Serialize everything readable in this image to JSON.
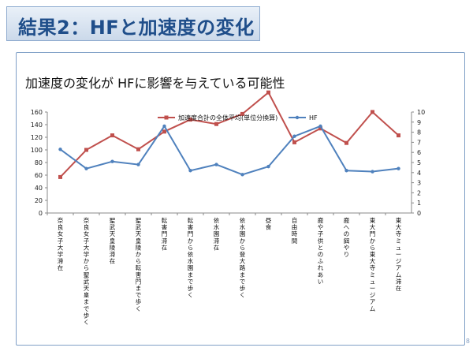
{
  "slide": {
    "title": "結果2：HFと加速度の変化",
    "subtitle": "加速度の変化が HFに影響を与えている可能性",
    "page_number": "8"
  },
  "chart_data": {
    "type": "line",
    "categories": [
      "奈良女子大学滞在",
      "奈良女子大学から聖武天皇まで歩く",
      "聖武天皇陵滞在",
      "聖武天皇陵から転害門まで歩く",
      "転害門滞在",
      "転害門から依水園まで歩く",
      "依水園滞在",
      "依水園から登大路まで歩く",
      "昼食",
      "自由時間",
      "鹿や子供とのふれあい",
      "鹿への餌やり",
      "東大門から東大寺ミュージアム",
      "東大寺ミュージアム滞在"
    ],
    "series": [
      {
        "name": "加速度合計の全体平均(単位分換算)",
        "axis": "left",
        "color": "#c0504d",
        "values": [
          57,
          100,
          123,
          101,
          129,
          148,
          141,
          157,
          191,
          112,
          134,
          111,
          160,
          123
        ]
      },
      {
        "name": "HF",
        "axis": "right",
        "color": "#4f81bd",
        "values": [
          6.3,
          4.4,
          5.1,
          4.8,
          8.6,
          4.2,
          4.8,
          3.8,
          4.6,
          7.6,
          8.6,
          4.2,
          4.1,
          4.4
        ]
      }
    ],
    "left_axis": {
      "ylim": [
        0,
        160
      ],
      "ticks": [
        "0",
        "20",
        "40",
        "60",
        "80",
        "100",
        "120",
        "140",
        "160"
      ]
    },
    "right_axis": {
      "ylim": [
        0,
        10
      ],
      "ticks": [
        "0",
        "1",
        "2",
        "3",
        "4",
        "5",
        "6",
        "7",
        "8",
        "9",
        "10"
      ]
    },
    "legend_position": "top-center",
    "grid": false
  }
}
